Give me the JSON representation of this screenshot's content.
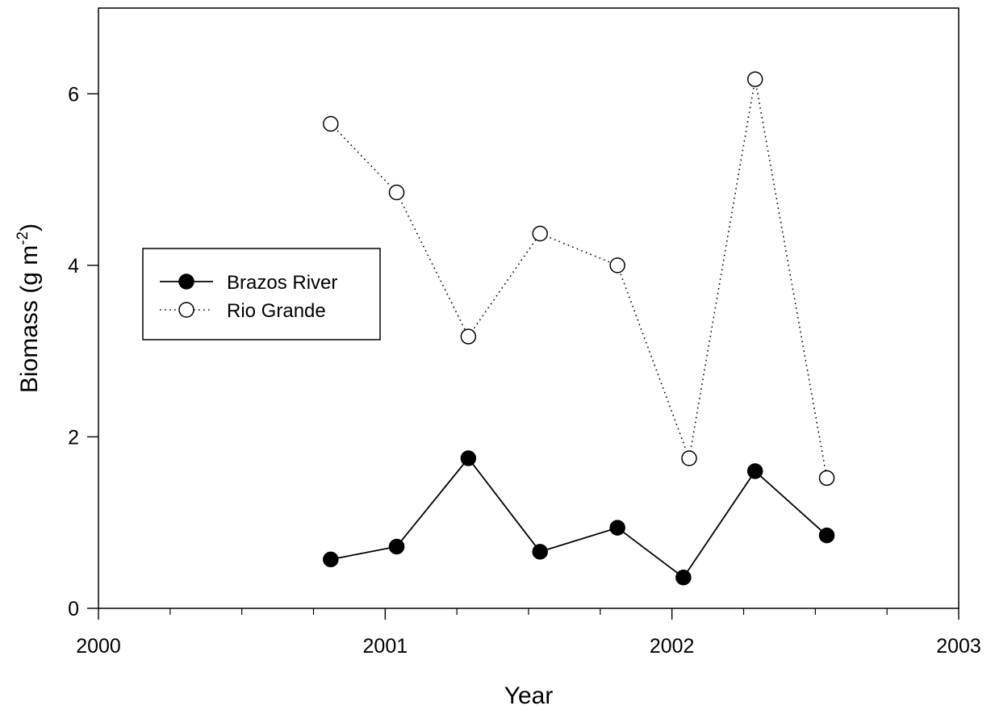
{
  "chart_data": {
    "type": "line",
    "title": "",
    "xlabel": "Year",
    "ylabel": {
      "main": "Biomass (g m",
      "superscript": "-2",
      "close": ")"
    },
    "xlim": [
      2000,
      2003
    ],
    "ylim": [
      0,
      7
    ],
    "x_ticks": [
      2000,
      2001,
      2002,
      2003
    ],
    "x_tick_labels": [
      "2000",
      "2001",
      "2002",
      "2003"
    ],
    "y_ticks": [
      0,
      2,
      4,
      6
    ],
    "y_tick_labels": [
      "0",
      "2",
      "4",
      "6"
    ],
    "grid": false,
    "legend": "left-middle",
    "series": [
      {
        "name": "Brazos River",
        "marker": "filled-circle",
        "line": "solid",
        "color": "#000000",
        "x": [
          2000.81,
          2001.04,
          2001.29,
          2001.54,
          2001.81,
          2002.04,
          2002.29,
          2002.54
        ],
        "y": [
          0.57,
          0.72,
          1.75,
          0.66,
          0.94,
          0.36,
          1.6,
          0.85
        ]
      },
      {
        "name": "Rio Grande",
        "marker": "open-circle",
        "line": "dotted",
        "color": "#000000",
        "x": [
          2000.81,
          2001.04,
          2001.29,
          2001.54,
          2001.81,
          2002.06,
          2002.29,
          2002.54
        ],
        "y": [
          5.65,
          4.85,
          3.17,
          4.37,
          4.0,
          1.75,
          6.17,
          1.52
        ]
      }
    ]
  }
}
